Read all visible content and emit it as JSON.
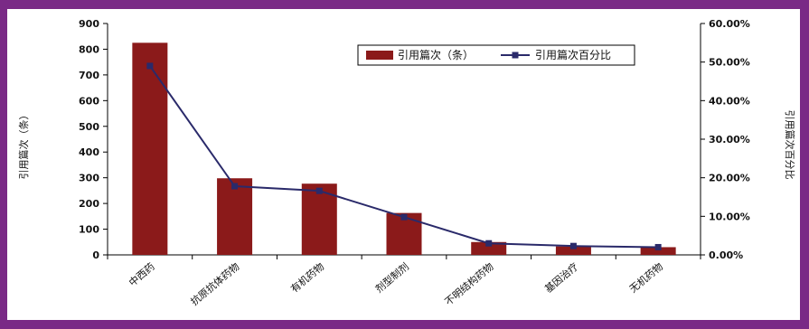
{
  "chart_data": {
    "type": "bar",
    "categories": [
      "中西药",
      "抗原抗体药物",
      "有机药物",
      "剂型制剂",
      "不明结构药物",
      "基因治疗",
      "无机药物"
    ],
    "series": [
      {
        "name": "引用篇次（条）",
        "type": "bar",
        "axis": "left",
        "color": "#8b1a1a",
        "values": [
          825,
          298,
          277,
          163,
          50,
          33,
          30
        ]
      },
      {
        "name": "引用篇次百分比",
        "type": "line",
        "axis": "right",
        "color": "#2a2a6a",
        "values": [
          49.0,
          17.8,
          16.6,
          9.8,
          3.0,
          2.3,
          2.0
        ]
      }
    ],
    "ylabel": "引用篇次（条）",
    "y2label": "引用篇次百分比",
    "ylim": [
      0,
      900
    ],
    "y2lim": [
      0,
      60
    ],
    "yticks": [
      "0",
      "100",
      "200",
      "300",
      "400",
      "500",
      "600",
      "700",
      "800",
      "900"
    ],
    "y2ticks": [
      "0.00%",
      "10.00%",
      "20.00%",
      "30.00%",
      "40.00%",
      "50.00%",
      "60.00%"
    ],
    "legend_position": "top-right",
    "grid": false
  }
}
